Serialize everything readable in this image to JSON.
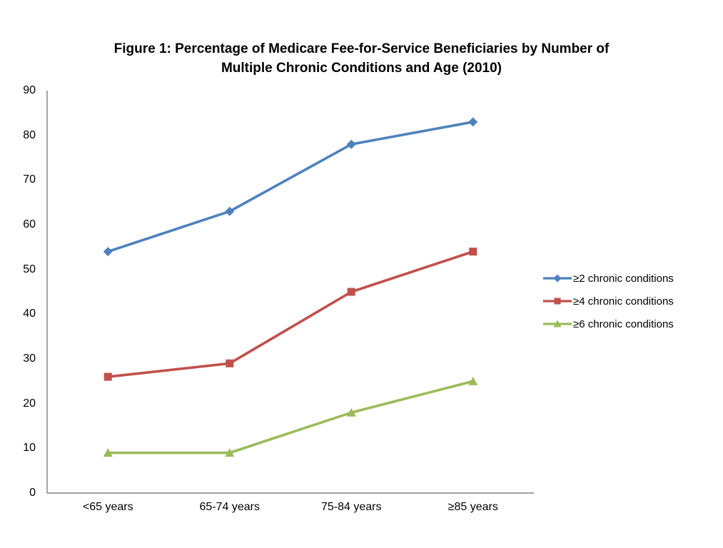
{
  "chart_data": {
    "type": "line",
    "title": "Figure 1: Percentage of Medicare Fee-for-Service Beneficiaries by Number of Multiple Chronic Conditions and Age (2010)",
    "title_lines": [
      "Figure 1: Percentage of Medicare Fee-for-Service Beneficiaries by Number of",
      "Multiple Chronic Conditions and Age (2010)"
    ],
    "categories": [
      "<65 years",
      "65-74 years",
      "75-84 years",
      "≥85 years"
    ],
    "series": [
      {
        "name": "≥2 chronic conditions",
        "values": [
          54,
          63,
          78,
          83
        ],
        "color": "#4F81BD",
        "marker": "diamond"
      },
      {
        "name": "≥4 chronic conditions",
        "values": [
          26,
          29,
          45,
          54
        ],
        "color": "#C0504D",
        "marker": "square"
      },
      {
        "name": "≥6 chronic conditions",
        "values": [
          9,
          9,
          18,
          25
        ],
        "color": "#9BBB59",
        "marker": "triangle"
      }
    ],
    "xlabel": "",
    "ylabel": "",
    "ylim": [
      0,
      90
    ],
    "yticks": [
      0,
      10,
      20,
      30,
      40,
      50,
      60,
      70,
      80,
      90
    ],
    "grid": false,
    "legend_position": "right",
    "axis_color": "#808080",
    "text_color": "#000000",
    "background_color": "#FFFFFF"
  }
}
